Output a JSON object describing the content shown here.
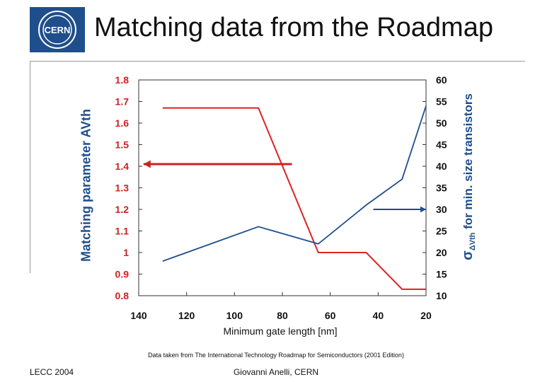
{
  "title": "Matching data from the Roadmap",
  "logo_text": "CERN",
  "footer": {
    "left": "LECC 2004",
    "center": "Giovanni Anelli, CERN"
  },
  "colors": {
    "title": "#111111",
    "axis_text": "#cc2222",
    "matching_series": "#dd2222",
    "sigma_series": "#1f4e8c",
    "arrow_red": "#cc2222",
    "arrow_blue": "#1f4e8c"
  },
  "chart_data": {
    "type": "line",
    "title": "",
    "xlabel": "Minimum gate length [nm]",
    "ylabel_left": "Matching parameter AVth",
    "ylabel_right": {
      "symbol": "σ",
      "subscript": "ΔVth",
      "text": "for min. size transistors"
    },
    "x_ticks": [
      140,
      120,
      100,
      80,
      60,
      40,
      20
    ],
    "xlim": [
      140,
      20
    ],
    "y_left_ticks": [
      "1.8",
      "1.7",
      "1.6",
      "1.5",
      "1.4",
      "1.3",
      "1.2",
      "1.1",
      "1",
      "0.9",
      "0.8"
    ],
    "y_left_lim": [
      0.8,
      1.8
    ],
    "y_right_ticks": [
      "60",
      "55",
      "50",
      "45",
      "40",
      "35",
      "30",
      "25",
      "20",
      "15",
      "10"
    ],
    "y_right_lim": [
      10,
      60
    ],
    "series": [
      {
        "name": "Matching parameter",
        "axis": "left",
        "color": "#dd2222",
        "x": [
          130,
          90,
          65,
          45,
          30,
          20
        ],
        "y": [
          1.67,
          1.67,
          1.0,
          1.0,
          0.83,
          0.83
        ]
      },
      {
        "name": "Sigma dVth min size",
        "axis": "right",
        "color": "#1f4e8c",
        "x": [
          130,
          90,
          65,
          45,
          30,
          20
        ],
        "y": [
          18,
          26,
          22,
          31,
          37,
          54
        ]
      }
    ],
    "annotations": [
      {
        "type": "arrow",
        "color": "#cc2222",
        "direction": "left",
        "x_from": 76,
        "x_to": 138,
        "y": 1.41,
        "axis": "left"
      },
      {
        "type": "arrow",
        "color": "#1f4e8c",
        "direction": "right",
        "x_from": 42,
        "x_to": 20,
        "y": 30,
        "axis": "right"
      }
    ],
    "grid": false,
    "note": "Data taken from The International Technology Roadmap for Semiconductors (2001 Edition)"
  }
}
